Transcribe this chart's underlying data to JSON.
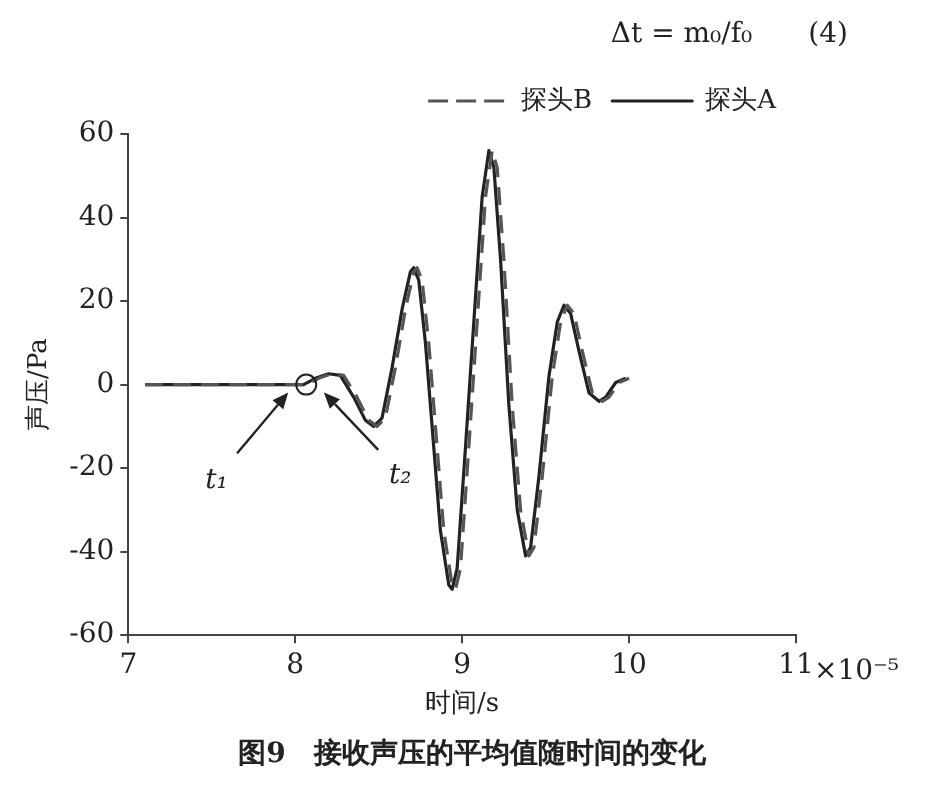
{
  "chart_data": {
    "type": "line",
    "title": "图9　接收声压的平均值随时间的变化",
    "xlabel": "时间/s",
    "ylabel": "声压/Pa",
    "xlim": [
      7,
      11
    ],
    "xticks": [
      7,
      8,
      9,
      10,
      11
    ],
    "ylim": [
      -60,
      60
    ],
    "yticks": [
      -60,
      -40,
      -20,
      0,
      20,
      40,
      60
    ],
    "grid": false,
    "legend": "top right",
    "marker": "none",
    "annotations": [
      "Δt = m₀/f₀　　(4)",
      "t₁",
      "t₂",
      "×10⁻⁵"
    ],
    "series": [
      {
        "name": "探头B",
        "color": "#555555",
        "line_style": "dashed",
        "x": [
          7.1,
          8.0,
          8.07,
          8.14,
          8.22,
          8.29,
          8.37,
          8.44,
          8.49,
          8.54,
          8.6,
          8.66,
          8.71,
          8.73,
          8.76,
          8.8,
          8.84,
          8.89,
          8.94,
          8.96,
          8.99,
          9.04,
          9.09,
          9.14,
          9.18,
          9.21,
          9.25,
          9.3,
          9.35,
          9.4,
          9.43,
          9.48,
          9.54,
          9.59,
          9.63,
          9.67,
          9.72,
          9.78,
          9.84,
          9.88,
          9.94,
          10.0
        ],
        "values": [
          0,
          0,
          0,
          1.5,
          2.6,
          2.2,
          -3,
          -8.5,
          -10,
          -8,
          4,
          18,
          27,
          28,
          25,
          10,
          -10,
          -35,
          -48,
          -49,
          -44,
          -15,
          15,
          45,
          56,
          52,
          30,
          -5,
          -30,
          -41,
          -39,
          -22,
          2,
          15,
          19,
          17,
          8,
          -2,
          -4,
          -3,
          0.5,
          1.5
        ]
      },
      {
        "name": "探头A",
        "color": "#222222",
        "line_style": "solid",
        "x": [
          7.1,
          8.0,
          8.05,
          8.12,
          8.2,
          8.27,
          8.35,
          8.42,
          8.47,
          8.52,
          8.58,
          8.64,
          8.69,
          8.71,
          8.74,
          8.78,
          8.82,
          8.87,
          8.92,
          8.94,
          8.97,
          9.02,
          9.07,
          9.12,
          9.16,
          9.19,
          9.23,
          9.28,
          9.33,
          9.38,
          9.41,
          9.46,
          9.52,
          9.57,
          9.61,
          9.65,
          9.7,
          9.76,
          9.82,
          9.86,
          9.92,
          9.98
        ],
        "values": [
          0,
          0,
          0,
          1.5,
          2.6,
          2.2,
          -3,
          -8.5,
          -10,
          -8,
          4,
          18,
          27,
          28,
          25,
          10,
          -10,
          -35,
          -48,
          -49,
          -44,
          -15,
          15,
          45,
          56,
          52,
          30,
          -5,
          -30,
          -41,
          -39,
          -22,
          2,
          15,
          19,
          17,
          8,
          -2,
          -4,
          -3,
          0.5,
          1.5
        ]
      }
    ]
  }
}
